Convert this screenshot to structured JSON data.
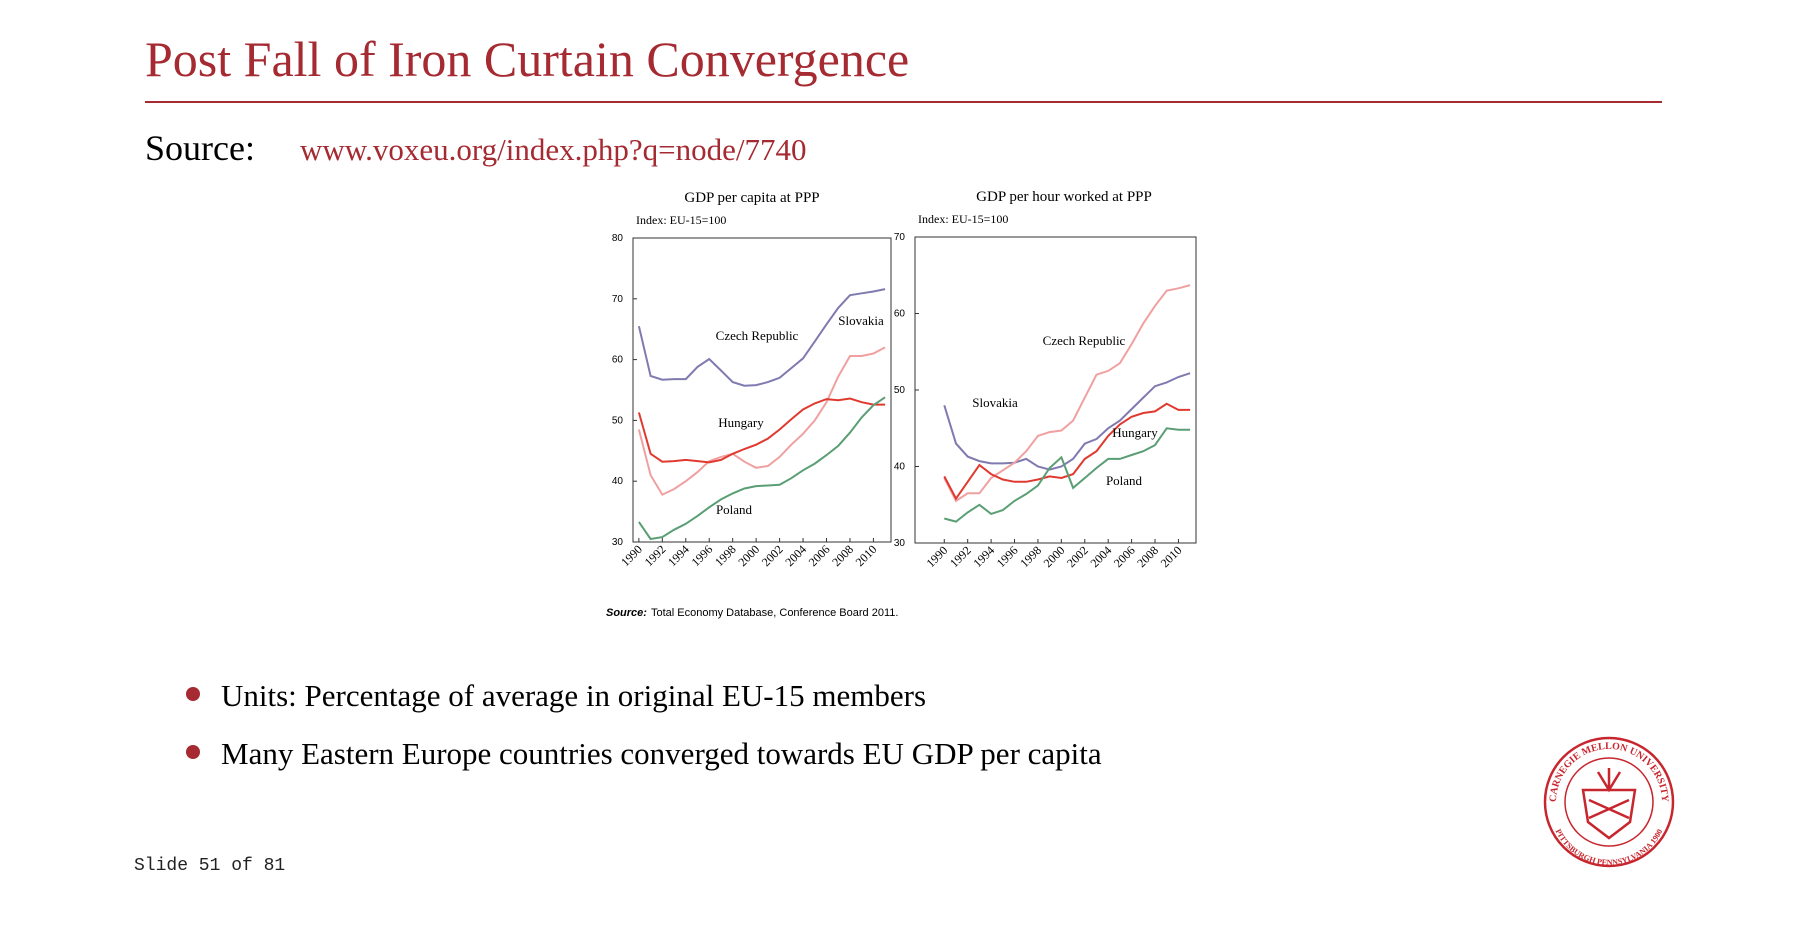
{
  "header": {
    "title": "Post Fall of Iron Curtain Convergence"
  },
  "source": {
    "label": "Source:",
    "link": "www.voxeu.org/index.php?q=node/7740"
  },
  "chart_data": [
    {
      "type": "line",
      "title": "GDP per capita at PPP",
      "subtitle": "Index: EU-15=100",
      "x": [
        1990,
        1991,
        1992,
        1993,
        1994,
        1995,
        1996,
        1997,
        1998,
        1999,
        2000,
        2001,
        2002,
        2003,
        2004,
        2005,
        2006,
        2007,
        2008,
        2009,
        2010,
        2011
      ],
      "xlim": [
        1989.5,
        2011.5
      ],
      "xticks": [
        1990,
        1992,
        1994,
        1996,
        1998,
        2000,
        2002,
        2004,
        2006,
        2008,
        2010
      ],
      "ylim": [
        30,
        80
      ],
      "yticks": [
        30,
        40,
        50,
        60,
        70,
        80
      ],
      "series": [
        {
          "name": "Czech Republic",
          "color": "#7f7ab0",
          "values": [
            65.5,
            57.3,
            56.7,
            56.8,
            56.8,
            58.8,
            60.1,
            58.2,
            56.3,
            55.7,
            55.8,
            56.3,
            57.0,
            58.6,
            60.2,
            63.0,
            65.8,
            68.5,
            70.6,
            70.9,
            71.2,
            71.6
          ]
        },
        {
          "name": "Slovakia",
          "color": "#f0a0a0",
          "values": [
            48.5,
            41,
            37.8,
            38.7,
            40,
            41.5,
            43.3,
            44,
            44.5,
            43.2,
            42.2,
            42.5,
            44,
            46,
            47.8,
            50,
            53,
            57.2,
            60.6,
            60.6,
            61,
            62
          ]
        },
        {
          "name": "Hungary",
          "color": "#e03a30",
          "values": [
            51.3,
            44.5,
            43.2,
            43.3,
            43.5,
            43.3,
            43.1,
            43.5,
            44.5,
            45.3,
            46,
            47,
            48.5,
            50.2,
            51.8,
            52.8,
            53.5,
            53.3,
            53.6,
            53,
            52.6,
            52.6
          ]
        },
        {
          "name": "Poland",
          "color": "#5a9e74",
          "values": [
            33.3,
            30.5,
            30.8,
            32,
            33,
            34.3,
            35.7,
            37,
            38,
            38.8,
            39.2,
            39.3,
            39.4,
            40.5,
            41.8,
            42.9,
            44.3,
            45.8,
            48.0,
            50.5,
            52.5,
            53.8
          ]
        }
      ]
    },
    {
      "type": "line",
      "title": "GDP per hour worked at PPP",
      "subtitle": "Index: EU-15=100",
      "x": [
        1990,
        1991,
        1992,
        1993,
        1994,
        1995,
        1996,
        1997,
        1998,
        1999,
        2000,
        2001,
        2002,
        2003,
        2004,
        2005,
        2006,
        2007,
        2008,
        2009,
        2010,
        2011
      ],
      "xlim": [
        1987.5,
        2011.5
      ],
      "xticks": [
        1990,
        1992,
        1994,
        1996,
        1998,
        2000,
        2002,
        2004,
        2006,
        2008,
        2010
      ],
      "ylim": [
        30,
        70
      ],
      "yticks": [
        30,
        40,
        50,
        60,
        70
      ],
      "series": [
        {
          "name": "Czech Republic",
          "color": "#7f7ab0",
          "values": [
            48,
            43,
            41.3,
            40.7,
            40.4,
            40.4,
            40.5,
            41,
            40,
            39.6,
            40,
            41,
            43,
            43.6,
            45,
            46,
            47.5,
            49,
            50.5,
            51,
            51.7,
            52.2
          ]
        },
        {
          "name": "Slovakia",
          "color": "#f0a0a0",
          "values": [
            38.5,
            35.5,
            36.5,
            36.5,
            38.5,
            39.5,
            40.5,
            42,
            44,
            44.5,
            44.7,
            46,
            49,
            52,
            52.5,
            53.5,
            56,
            58.7,
            61,
            63,
            63.3,
            63.7
          ]
        },
        {
          "name": "Hungary",
          "color": "#e03a30",
          "values": [
            38.7,
            35.8,
            38,
            40.2,
            39,
            38.3,
            38,
            38,
            38.3,
            38.7,
            38.5,
            39,
            41,
            42,
            44,
            45.5,
            46.5,
            47,
            47.2,
            48.2,
            47.4,
            47.4
          ]
        },
        {
          "name": "Poland",
          "color": "#5a9e74",
          "values": [
            33.2,
            32.8,
            34,
            35,
            33.8,
            34.3,
            35.5,
            36.4,
            37.5,
            39.8,
            41.2,
            37.2,
            38.5,
            39.8,
            41,
            41,
            41.5,
            42,
            42.8,
            45,
            44.8,
            44.8
          ]
        }
      ]
    }
  ],
  "chart_source": {
    "label": "Source:",
    "text": "Total Economy Database, Conference Board 2011."
  },
  "bullets": [
    "Units: Percentage of average in original EU-15 members",
    "Many Eastern Europe countries converged towards EU GDP per capita"
  ],
  "footer": {
    "slide": "Slide 51 of 81"
  },
  "logo": {
    "top": "CARNEGIE MELLON UNIVERSITY",
    "bottom": "PITTSBURGH PENNSYLVANIA 1900"
  }
}
